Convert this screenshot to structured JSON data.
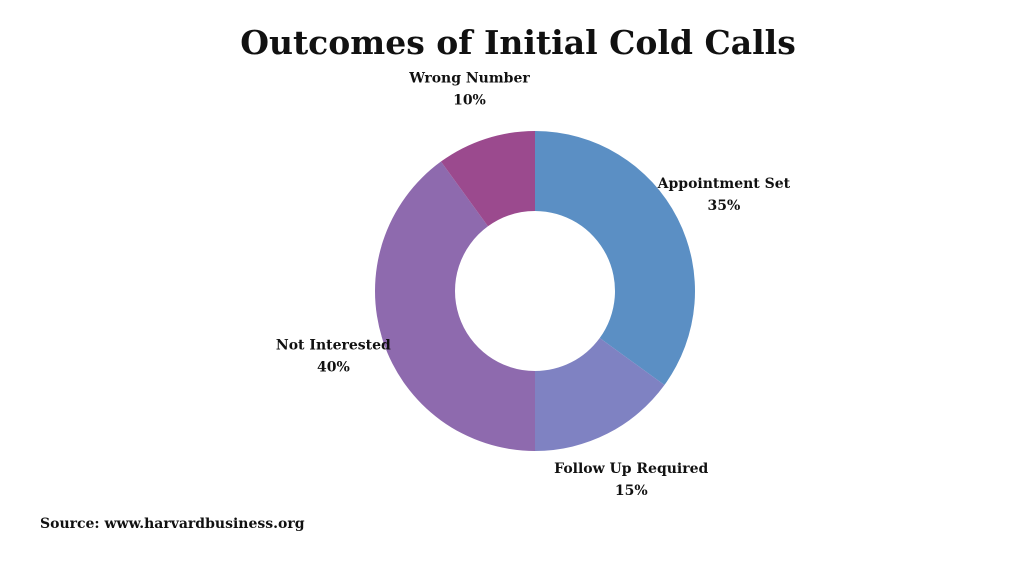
{
  "chart_data": {
    "type": "pie",
    "title": "Outcomes of Initial Cold Calls",
    "categories": [
      "Appointment Set",
      "Follow Up Required",
      "Not Interested",
      "Wrong Number"
    ],
    "values": [
      35,
      15,
      40,
      10
    ],
    "value_labels": [
      "35%",
      "15%",
      "40%",
      "10%"
    ],
    "colors": [
      "#5b8fc4",
      "#7f82c2",
      "#8e6aae",
      "#9b4a8e"
    ],
    "source": "Source: www.harvardbusiness.org"
  }
}
